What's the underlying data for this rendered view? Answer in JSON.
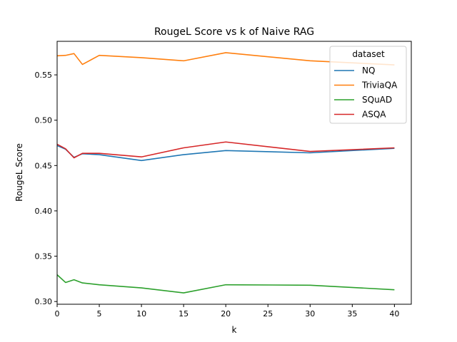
{
  "chart_data": {
    "type": "line",
    "title": "RougeL Score vs k of Naive RAG",
    "xlabel": "k",
    "ylabel": "RougeL Score",
    "xlim": [
      0,
      42
    ],
    "ylim": [
      0.297,
      0.587
    ],
    "xticks": [
      "0",
      "5",
      "10",
      "15",
      "20",
      "25",
      "30",
      "35",
      "40"
    ],
    "yticks": [
      "0.30",
      "0.35",
      "0.40",
      "0.45",
      "0.50",
      "0.55"
    ],
    "grid": false,
    "legend": {
      "title": "dataset",
      "placement": "top-right"
    },
    "x": [
      0,
      1,
      2,
      3,
      5,
      10,
      15,
      20,
      30,
      40
    ],
    "series": [
      {
        "name": "NQ",
        "color": "#1f77b4",
        "values": [
          0.472,
          0.468,
          0.459,
          0.463,
          0.462,
          0.4555,
          0.462,
          0.4665,
          0.464,
          0.469
        ]
      },
      {
        "name": "TriviaQA",
        "color": "#ff7f0e",
        "values": [
          0.571,
          0.5715,
          0.5735,
          0.5615,
          0.5715,
          0.569,
          0.5655,
          0.5745,
          0.5655,
          0.561
        ]
      },
      {
        "name": "SQuAD",
        "color": "#2ca02c",
        "values": [
          0.3295,
          0.321,
          0.324,
          0.3205,
          0.3185,
          0.315,
          0.3095,
          0.3185,
          0.318,
          0.313
        ]
      },
      {
        "name": "ASQA",
        "color": "#d62728",
        "values": [
          0.4735,
          0.4685,
          0.4585,
          0.4635,
          0.4635,
          0.4595,
          0.4695,
          0.476,
          0.4655,
          0.4695
        ]
      }
    ]
  }
}
